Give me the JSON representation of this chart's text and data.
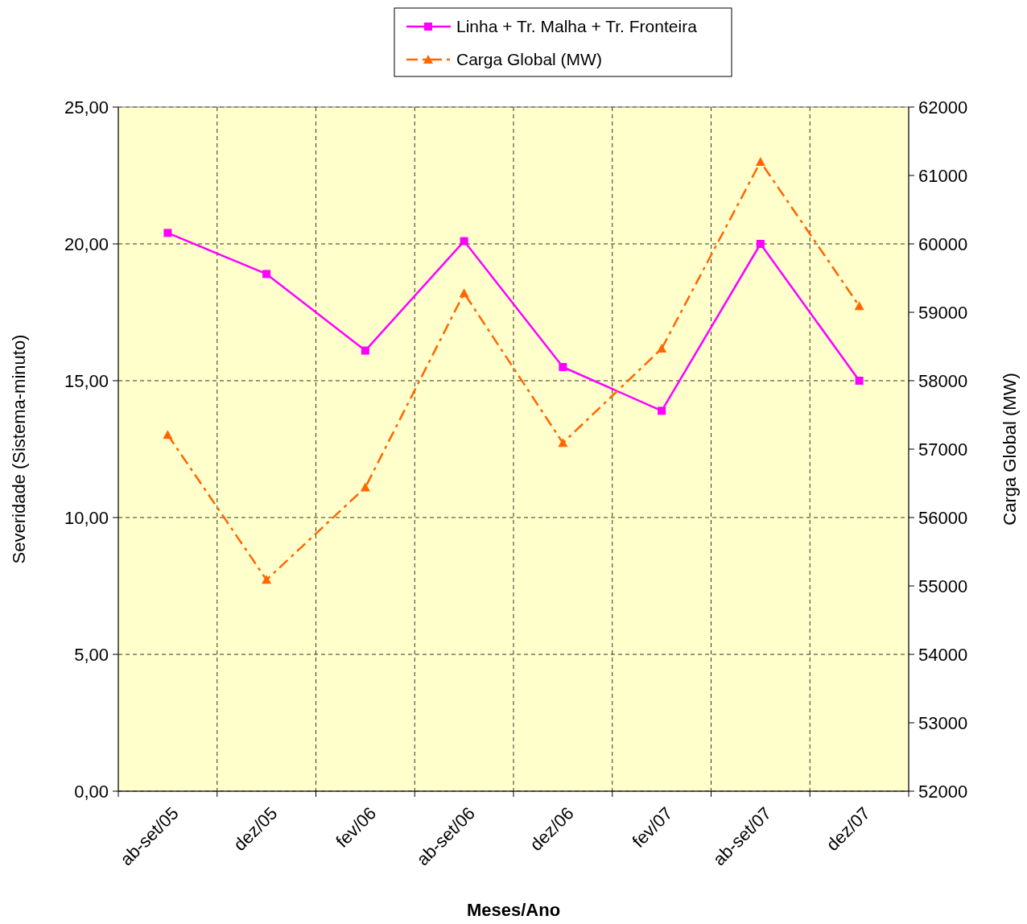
{
  "chart_data": {
    "type": "line",
    "xlabel": "Meses/Ano",
    "ylabel": "Severidade (Sistema-minuto)",
    "y2label": "Carga Global (MW)",
    "categories": [
      "ab-set/05",
      "dez/05",
      "fev/06",
      "ab-set/06",
      "dez/06",
      "fev/07",
      "ab-set/07",
      "dez/07"
    ],
    "series": [
      {
        "name": "Linha + Tr. Malha + Tr. Fronteira",
        "color": "#ff00ff",
        "marker": "square",
        "line_style": "solid",
        "values": [
          20.4,
          18.9,
          16.1,
          20.1,
          15.5,
          13.9,
          20.0,
          15.0
        ]
      },
      {
        "name": "Carga Global (MW)",
        "color": "#ff6600",
        "marker": "triangle",
        "line_style": "dashed",
        "axis": "y2",
        "values": [
          57210,
          55090,
          56440,
          59280,
          57090,
          58470,
          61200,
          59090
        ]
      }
    ],
    "ylim": [
      0,
      25
    ],
    "yticks": [
      {
        "value": 0,
        "label": "0,00"
      },
      {
        "value": 5,
        "label": "5,00"
      },
      {
        "value": 10,
        "label": "10,00"
      },
      {
        "value": 15,
        "label": "15,00"
      },
      {
        "value": 20,
        "label": "20,00"
      },
      {
        "value": 25,
        "label": "25,00"
      }
    ],
    "y2lim": [
      52000,
      62000
    ],
    "y2ticks": [
      52000,
      53000,
      54000,
      55000,
      56000,
      57000,
      58000,
      59000,
      60000,
      61000,
      62000
    ],
    "grid": true,
    "legend": "top"
  }
}
